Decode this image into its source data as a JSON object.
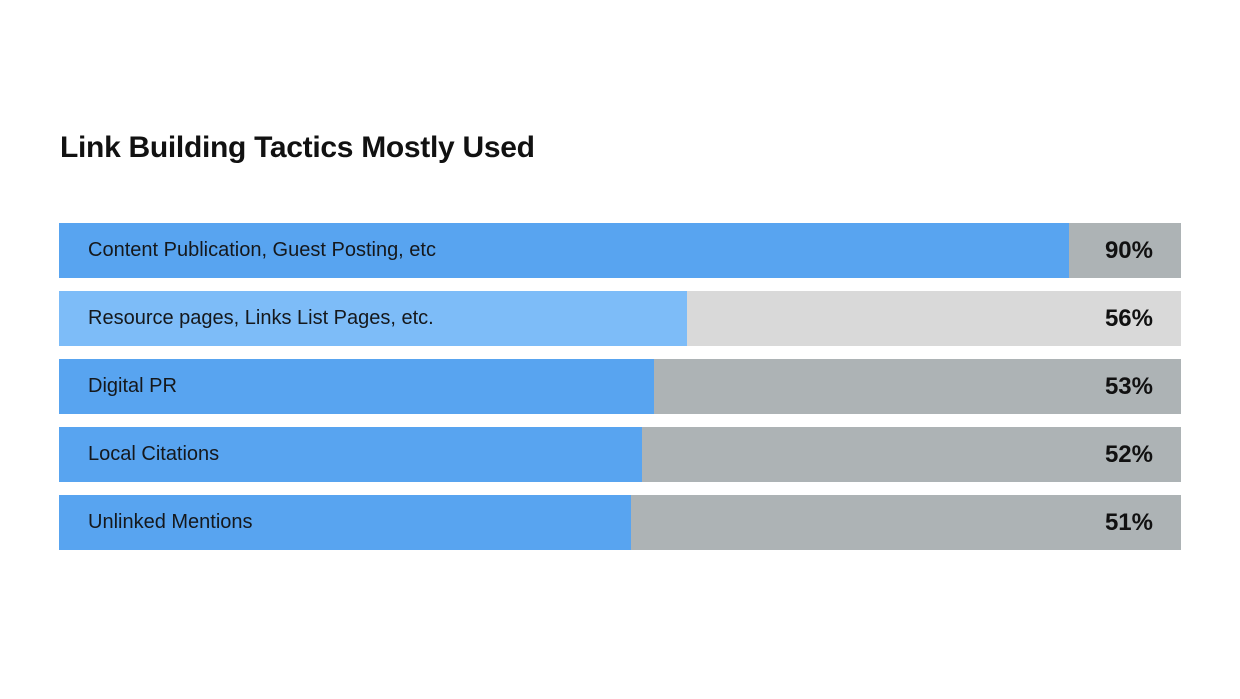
{
  "title": "Link Building Tactics Mostly Used",
  "colors": {
    "background": "#ffffff",
    "bar_blue": "#58A4F0",
    "bar_blue_light": "#7DBCF8",
    "track_gray": "#ADB3B5",
    "track_gray_light": "#D9D9D9",
    "text_dark": "#111111"
  },
  "chart_data": {
    "type": "bar",
    "orientation": "horizontal",
    "title": "Link Building Tactics Mostly Used",
    "categories": [
      "Content Publication, Guest Posting,  etc",
      "Resource pages, Links List Pages, etc.",
      "Digital PR",
      "Local Citations",
      "Unlinked Mentions"
    ],
    "values": [
      90,
      56,
      53,
      52,
      51
    ],
    "value_labels": [
      "90%",
      "56%",
      "53%",
      "52%",
      "51%"
    ],
    "xlim": [
      0,
      100
    ],
    "grid": false,
    "legend": false,
    "value_label_position": "inside-track-right"
  },
  "bars": [
    {
      "label": "Content Publication, Guest Posting,  etc",
      "value": 90,
      "value_label": "90%",
      "fill": "#58A4F0",
      "track": "#ADB3B5"
    },
    {
      "label": "Resource pages, Links List Pages, etc.",
      "value": 56,
      "value_label": "56%",
      "fill": "#7DBCF8",
      "track": "#D9D9D9"
    },
    {
      "label": "Digital PR",
      "value": 53,
      "value_label": "53%",
      "fill": "#58A4F0",
      "track": "#ADB3B5"
    },
    {
      "label": "Local Citations",
      "value": 52,
      "value_label": "52%",
      "fill": "#58A4F0",
      "track": "#ADB3B5"
    },
    {
      "label": "Unlinked Mentions",
      "value": 51,
      "value_label": "51%",
      "fill": "#58A4F0",
      "track": "#ADB3B5"
    }
  ]
}
